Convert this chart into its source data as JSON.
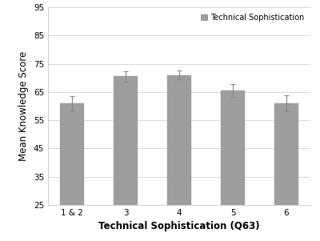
{
  "categories": [
    "1 & 2",
    "3",
    "4",
    "5",
    "6"
  ],
  "values": [
    61.0,
    70.5,
    71.0,
    65.5,
    61.0
  ],
  "errors": [
    2.5,
    1.8,
    1.5,
    2.2,
    2.8
  ],
  "bar_color": "#9e9e9e",
  "bar_edgecolor": "#9e9e9e",
  "error_color": "#888888",
  "xlabel": "Technical Sophistication (Q63)",
  "ylabel": "Mean Knowledge Score",
  "legend_label": "Technical Sophistication",
  "ylim": [
    25,
    95
  ],
  "yticks": [
    25,
    35,
    45,
    55,
    65,
    75,
    85,
    95
  ],
  "background_color": "#ffffff",
  "grid_color": "#d0d0d0",
  "xlabel_fontsize": 8.5,
  "ylabel_fontsize": 8.5,
  "tick_fontsize": 7.5,
  "legend_fontsize": 7.0,
  "bar_width": 0.45
}
